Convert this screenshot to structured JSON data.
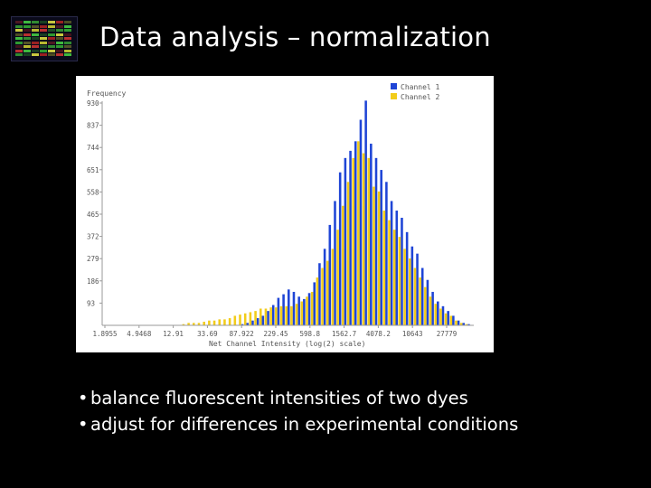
{
  "slide": {
    "title": "Data analysis – normalization",
    "bullets": [
      "balance fluorescent intensities of two dyes",
      "adjust for differences in experimental conditions"
    ]
  },
  "chart_data": {
    "type": "bar",
    "ylabel": "Frequency",
    "xlabel": "Net Channel Intensity (log(2) scale)",
    "y_ticks": [
      "930",
      "837",
      "744",
      "651",
      "558",
      "465",
      "372",
      "279",
      "186",
      "93"
    ],
    "y_tick_values": [
      930,
      837,
      744,
      651,
      558,
      465,
      372,
      279,
      186,
      93
    ],
    "ylim": [
      0,
      930
    ],
    "x_ticks": [
      "1.8955",
      "4.9468",
      "12.91",
      "33.69",
      "87.922",
      "229.45",
      "598.8",
      "1562.7",
      "4078.2",
      "10643",
      "27779"
    ],
    "legend_position": "top-right",
    "colors": {
      "channel1": "#1f45d6",
      "channel2": "#f2cc1a",
      "axis": "#9a9a9a"
    },
    "series": [
      {
        "name": "Channel 1",
        "values": [
          0,
          0,
          0,
          0,
          0,
          0,
          0,
          0,
          0,
          0,
          0,
          0,
          0,
          0,
          0,
          0,
          0,
          0,
          0,
          0,
          0,
          0,
          0,
          0,
          0,
          2,
          5,
          10,
          20,
          30,
          40,
          60,
          85,
          115,
          130,
          150,
          140,
          120,
          110,
          135,
          180,
          260,
          320,
          420,
          520,
          640,
          700,
          730,
          770,
          860,
          940,
          760,
          700,
          650,
          600,
          520,
          480,
          450,
          390,
          330,
          300,
          240,
          190,
          140,
          100,
          80,
          60,
          40,
          20,
          10,
          5
        ]
      },
      {
        "name": "Channel 2",
        "values": [
          0,
          0,
          0,
          0,
          0,
          0,
          0,
          0,
          0,
          0,
          0,
          0,
          0,
          0,
          0,
          5,
          10,
          10,
          10,
          15,
          20,
          20,
          25,
          25,
          30,
          40,
          45,
          50,
          55,
          60,
          70,
          70,
          75,
          75,
          80,
          80,
          80,
          90,
          100,
          120,
          140,
          200,
          240,
          270,
          320,
          400,
          500,
          600,
          700,
          770,
          720,
          700,
          580,
          560,
          480,
          440,
          400,
          370,
          320,
          280,
          240,
          200,
          160,
          120,
          90,
          70,
          50,
          40,
          20,
          10,
          5
        ]
      }
    ]
  }
}
